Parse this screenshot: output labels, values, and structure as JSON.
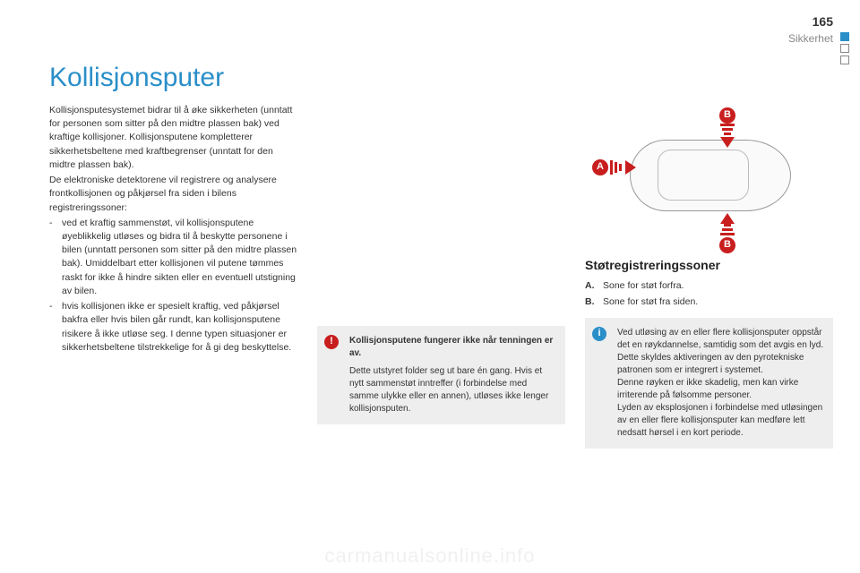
{
  "header": {
    "page_number": "165",
    "section": "Sikkerhet"
  },
  "title": "Kollisjonsputer",
  "col1": {
    "intro": "Kollisjonsputesystemet bidrar til å øke sikkerheten (unntatt for personen som sitter på den midtre plassen bak) ved kraftige kollisjoner. Kollisjonsputene kompletterer sikkerhetsbeltene med kraftbegrenser (unntatt for den midtre plassen bak).",
    "intro2": "De elektroniske detektorene vil registrere og analysere frontkollisjonen og påkjørsel fra siden i bilens registreringssoner:",
    "bullets": [
      "ved et kraftig sammenstøt, vil kollisjonsputene øyeblikkelig utløses og bidra til å beskytte personene i bilen (unntatt personen som sitter på den midtre plassen bak). Umiddelbart etter kollisjonen vil putene tømmes raskt for ikke å hindre sikten eller en eventuell utstigning av bilen.",
      "hvis kollisjonen ikke er spesielt kraftig, ved påkjørsel bakfra eller hvis bilen går rundt, kan kollisjonsputene risikere å ikke utløse seg. I denne typen situasjoner er sikkerhetsbeltene tilstrekkelige for å gi deg beskyttelse."
    ]
  },
  "col2": {
    "warn_box": {
      "bold": "Kollisjonsputene fungerer ikke når tenningen er av.",
      "text": "Dette utstyret folder seg ut bare én gang. Hvis et nytt sammenstøt inntreffer (i forbindelse med samme ulykke eller en annen), utløses ikke lenger kollisjonsputen."
    }
  },
  "col3": {
    "diagram": {
      "badge_a": "A",
      "badge_b": "B"
    },
    "subheading": "Støtregistreringssoner",
    "defs": [
      {
        "label": "A.",
        "text": "Sone for støt forfra."
      },
      {
        "label": "B.",
        "text": "Sone for støt fra siden."
      }
    ],
    "info_box": {
      "p1": "Ved utløsing av en eller flere kollisjonsputer oppstår det en røykdannelse, samtidig som det avgis en lyd. Dette skyldes aktiveringen av den pyrotekniske patronen som er integrert i systemet.",
      "p2": "Denne røyken er ikke skadelig, men kan virke irriterende på følsomme personer.",
      "p3": "Lyden av eksplosjonen i forbindelse med utløsingen av en eller flere kollisjonsputer kan medføre lett nedsatt hørsel i en kort periode."
    }
  },
  "watermark": "carmanualsonline.info",
  "colors": {
    "accent": "#2a8fc9",
    "danger": "#c81e1e",
    "box_bg": "#eeeeee",
    "text": "#333333"
  }
}
